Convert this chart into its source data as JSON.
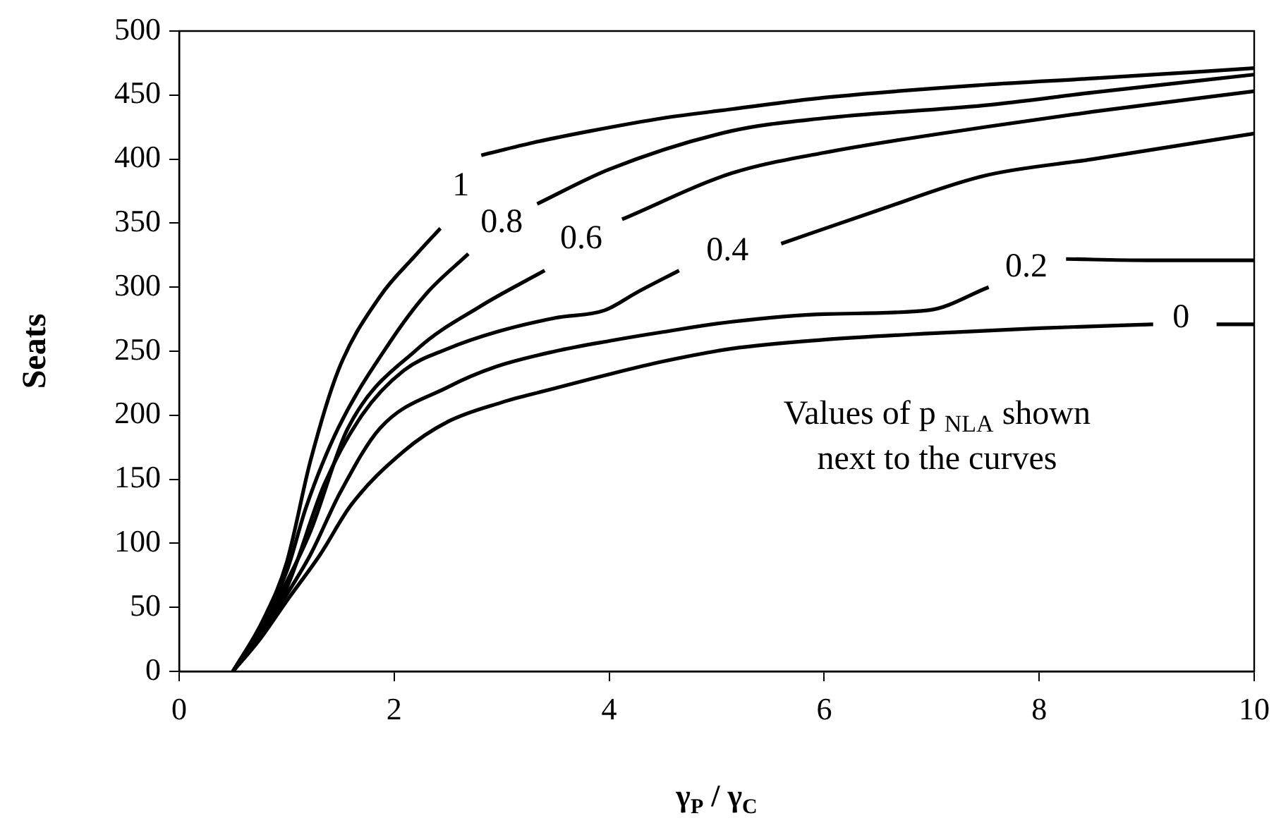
{
  "chart_data": {
    "type": "line",
    "xlabel": "γ$_{P}$ / γ$_{C}$",
    "ylabel": "Seats",
    "xlim": [
      0,
      10
    ],
    "xticks": [
      0,
      2,
      4,
      6,
      8,
      10
    ],
    "ylim": [
      0,
      500
    ],
    "yticks": [
      0,
      50,
      100,
      150,
      200,
      250,
      300,
      350,
      400,
      450,
      500
    ],
    "grid": false,
    "legend": false,
    "marker": "none",
    "line_style": "solid",
    "annotations": [
      "Values of p $_{NLA}$ shown",
      "next to the curves"
    ],
    "series": [
      {
        "name": "1",
        "color": "#000000",
        "x": [
          0.5,
          0.78,
          1,
          1.22,
          1.48,
          1.87,
          2.2,
          2.43,
          2.62,
          2.81,
          3.3,
          3.83,
          4.5,
          5.14,
          6,
          7.49,
          8.5,
          10
        ],
        "values": [
          0,
          40,
          85,
          164,
          235,
          293,
          325,
          346,
          null,
          403,
          413,
          422,
          432,
          439,
          448,
          458,
          463,
          471
        ]
      },
      {
        "name": "0.8",
        "color": "#000000",
        "x": [
          0.5,
          0.75,
          1,
          1.18,
          1.48,
          1.96,
          2.3,
          2.69,
          3.0,
          3.33,
          4,
          5.14,
          6,
          7.49,
          8.5,
          10
        ],
        "values": [
          0,
          34,
          78,
          128,
          190,
          257,
          295,
          326,
          null,
          365,
          392,
          422,
          432,
          442,
          452,
          466
        ]
      },
      {
        "name": "0.6",
        "color": "#000000",
        "x": [
          0.5,
          0.75,
          1,
          1.22,
          1.57,
          2.22,
          2.8,
          3.4,
          3.74,
          4.12,
          5.14,
          6,
          7.49,
          8.5,
          10
        ],
        "values": [
          0,
          32,
          70,
          109,
          190,
          252,
          285,
          313,
          null,
          353,
          389,
          405,
          425,
          437,
          453
        ]
      },
      {
        "name": "0.4",
        "color": "#000000",
        "x": [
          0.5,
          0.75,
          1,
          1.35,
          1.7,
          2.09,
          2.5,
          2.95,
          3.5,
          3.96,
          4.26,
          4.65,
          5.1,
          5.6,
          6.5,
          7.49,
          8.5,
          10
        ],
        "values": [
          0,
          30,
          65,
          146,
          200,
          235,
          252,
          265,
          276,
          282,
          296,
          313,
          null,
          334,
          360,
          387,
          400,
          420
        ]
      },
      {
        "name": "0.2",
        "color": "#000000",
        "x": [
          0.5,
          0.75,
          1,
          1.22,
          1.5,
          1.87,
          2.5,
          2.95,
          3.5,
          4,
          4.5,
          5.14,
          6,
          6.97,
          7.53,
          7.88,
          8.25,
          9,
          10
        ],
        "values": [
          0,
          28,
          60,
          91,
          140,
          190,
          222,
          238,
          250,
          258,
          265,
          273,
          279,
          282,
          300,
          null,
          322,
          321,
          321
        ]
      },
      {
        "name": "0",
        "color": "#000000",
        "x": [
          0.5,
          0.75,
          1,
          1.31,
          1.6,
          2.09,
          2.5,
          3,
          3.4,
          4,
          4.5,
          5.14,
          6,
          7,
          8,
          9.06,
          9.32,
          9.65,
          10
        ],
        "values": [
          0,
          25,
          55,
          91,
          130,
          172,
          195,
          210,
          219,
          232,
          242,
          252,
          259,
          264,
          268,
          271,
          null,
          271,
          271
        ]
      }
    ]
  }
}
